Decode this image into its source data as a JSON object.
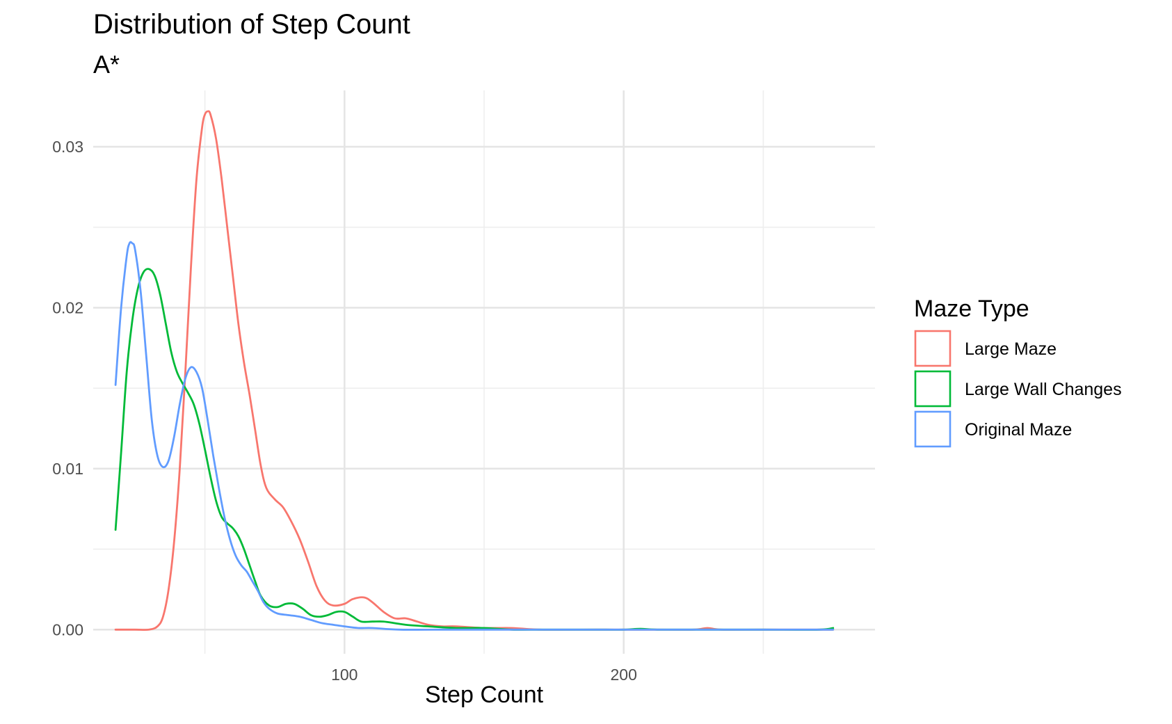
{
  "chart_data": {
    "type": "line",
    "title": "Distribution of Step Count",
    "subtitle": "A*",
    "xlabel": "Step Count",
    "ylabel": "",
    "xlim": [
      10,
      290
    ],
    "ylim": [
      -0.0015,
      0.0335
    ],
    "x_ticks": [
      100,
      200
    ],
    "x_minor_ticks": [
      50,
      150,
      250
    ],
    "y_ticks": [
      0.0,
      0.01,
      0.02,
      0.03
    ],
    "y_tick_labels": [
      "0.00",
      "0.01",
      "0.02",
      "0.03"
    ],
    "y_minor_ticks": [
      0.005,
      0.015,
      0.025
    ],
    "grid": true,
    "legend": {
      "title": "Maze Type",
      "position": "right"
    },
    "series": [
      {
        "name": "Large Maze",
        "color": "#F8766D",
        "points": [
          [
            18,
            0
          ],
          [
            25,
            0
          ],
          [
            30,
            0
          ],
          [
            33,
            0.0002
          ],
          [
            35,
            0.0008
          ],
          [
            37,
            0.0025
          ],
          [
            39,
            0.0055
          ],
          [
            41,
            0.01
          ],
          [
            43,
            0.016
          ],
          [
            45,
            0.0225
          ],
          [
            47,
            0.028
          ],
          [
            49,
            0.0312
          ],
          [
            50,
            0.032
          ],
          [
            51,
            0.0322
          ],
          [
            52,
            0.032
          ],
          [
            54,
            0.0305
          ],
          [
            56,
            0.028
          ],
          [
            58,
            0.025
          ],
          [
            60,
            0.022
          ],
          [
            62,
            0.019
          ],
          [
            64,
            0.0166
          ],
          [
            66,
            0.0146
          ],
          [
            68,
            0.0124
          ],
          [
            70,
            0.0102
          ],
          [
            72,
            0.0088
          ],
          [
            75,
            0.0081
          ],
          [
            78,
            0.0076
          ],
          [
            81,
            0.0067
          ],
          [
            84,
            0.0056
          ],
          [
            87,
            0.0042
          ],
          [
            90,
            0.0027
          ],
          [
            93,
            0.0018
          ],
          [
            96,
            0.0015
          ],
          [
            100,
            0.0016
          ],
          [
            103,
            0.0019
          ],
          [
            107,
            0.002
          ],
          [
            110,
            0.0017
          ],
          [
            114,
            0.0011
          ],
          [
            118,
            0.0007
          ],
          [
            122,
            0.0007
          ],
          [
            126,
            0.0005
          ],
          [
            130,
            0.0003
          ],
          [
            135,
            0.0002
          ],
          [
            140,
            0.0002
          ],
          [
            150,
            0.0001
          ],
          [
            160,
            0.0001
          ],
          [
            170,
            0.0
          ],
          [
            190,
            0.0
          ],
          [
            210,
            0.0
          ],
          [
            225,
            0.0
          ],
          [
            230,
            0.0001
          ],
          [
            235,
            0.0
          ],
          [
            250,
            0.0
          ],
          [
            275,
            0.0
          ]
        ]
      },
      {
        "name": "Large Wall Changes",
        "color": "#00BA38",
        "points": [
          [
            18,
            0.0062
          ],
          [
            20,
            0.011
          ],
          [
            22,
            0.016
          ],
          [
            24,
            0.0192
          ],
          [
            26,
            0.0212
          ],
          [
            28,
            0.0222
          ],
          [
            30,
            0.0224
          ],
          [
            32,
            0.022
          ],
          [
            34,
            0.0208
          ],
          [
            36,
            0.019
          ],
          [
            38,
            0.0172
          ],
          [
            40,
            0.016
          ],
          [
            42,
            0.0153
          ],
          [
            44,
            0.0147
          ],
          [
            46,
            0.014
          ],
          [
            48,
            0.0128
          ],
          [
            50,
            0.0112
          ],
          [
            52,
            0.0095
          ],
          [
            54,
            0.008
          ],
          [
            56,
            0.007
          ],
          [
            58,
            0.0066
          ],
          [
            60,
            0.0063
          ],
          [
            62,
            0.0058
          ],
          [
            64,
            0.005
          ],
          [
            66,
            0.004
          ],
          [
            68,
            0.003
          ],
          [
            70,
            0.0021
          ],
          [
            73,
            0.0015
          ],
          [
            76,
            0.0014
          ],
          [
            79,
            0.0016
          ],
          [
            82,
            0.0016
          ],
          [
            85,
            0.0013
          ],
          [
            88,
            0.0009
          ],
          [
            91,
            0.0008
          ],
          [
            94,
            0.0009
          ],
          [
            97,
            0.0011
          ],
          [
            100,
            0.0011
          ],
          [
            103,
            0.0008
          ],
          [
            106,
            0.0005
          ],
          [
            110,
            0.0005
          ],
          [
            114,
            0.0005
          ],
          [
            118,
            0.0004
          ],
          [
            122,
            0.0003
          ],
          [
            130,
            0.0002
          ],
          [
            140,
            0.0001
          ],
          [
            150,
            0.0001
          ],
          [
            160,
            0.0
          ],
          [
            170,
            0.0
          ],
          [
            180,
            0.0
          ],
          [
            190,
            0.0
          ],
          [
            200,
            0.0
          ],
          [
            206,
            5e-05
          ],
          [
            212,
            0.0
          ],
          [
            230,
            0.0
          ],
          [
            250,
            0.0
          ],
          [
            270,
            0.0
          ],
          [
            275,
            0.0001
          ]
        ]
      },
      {
        "name": "Original Maze",
        "color": "#619CFF",
        "points": [
          [
            18,
            0.0152
          ],
          [
            20,
            0.02
          ],
          [
            22,
            0.0232
          ],
          [
            23,
            0.024
          ],
          [
            24,
            0.024
          ],
          [
            25,
            0.0236
          ],
          [
            27,
            0.021
          ],
          [
            29,
            0.017
          ],
          [
            31,
            0.013
          ],
          [
            33,
            0.0108
          ],
          [
            35,
            0.0101
          ],
          [
            37,
            0.0105
          ],
          [
            39,
            0.012
          ],
          [
            41,
            0.014
          ],
          [
            43,
            0.0156
          ],
          [
            45,
            0.0163
          ],
          [
            47,
            0.016
          ],
          [
            49,
            0.015
          ],
          [
            51,
            0.013
          ],
          [
            53,
            0.0108
          ],
          [
            55,
            0.0088
          ],
          [
            57,
            0.007
          ],
          [
            59,
            0.0056
          ],
          [
            61,
            0.0046
          ],
          [
            63,
            0.004
          ],
          [
            65,
            0.0036
          ],
          [
            67,
            0.003
          ],
          [
            69,
            0.0024
          ],
          [
            71,
            0.0017
          ],
          [
            73,
            0.0013
          ],
          [
            76,
            0.001
          ],
          [
            80,
            0.0009
          ],
          [
            84,
            0.0008
          ],
          [
            88,
            0.0006
          ],
          [
            92,
            0.0004
          ],
          [
            96,
            0.0003
          ],
          [
            100,
            0.0002
          ],
          [
            105,
            0.0001
          ],
          [
            110,
            0.0001
          ],
          [
            120,
            0.0
          ],
          [
            140,
            0.0
          ],
          [
            170,
            0.0
          ],
          [
            200,
            0.0
          ],
          [
            230,
            0.0
          ],
          [
            260,
            0.0
          ],
          [
            275,
            0.0
          ]
        ]
      }
    ]
  }
}
